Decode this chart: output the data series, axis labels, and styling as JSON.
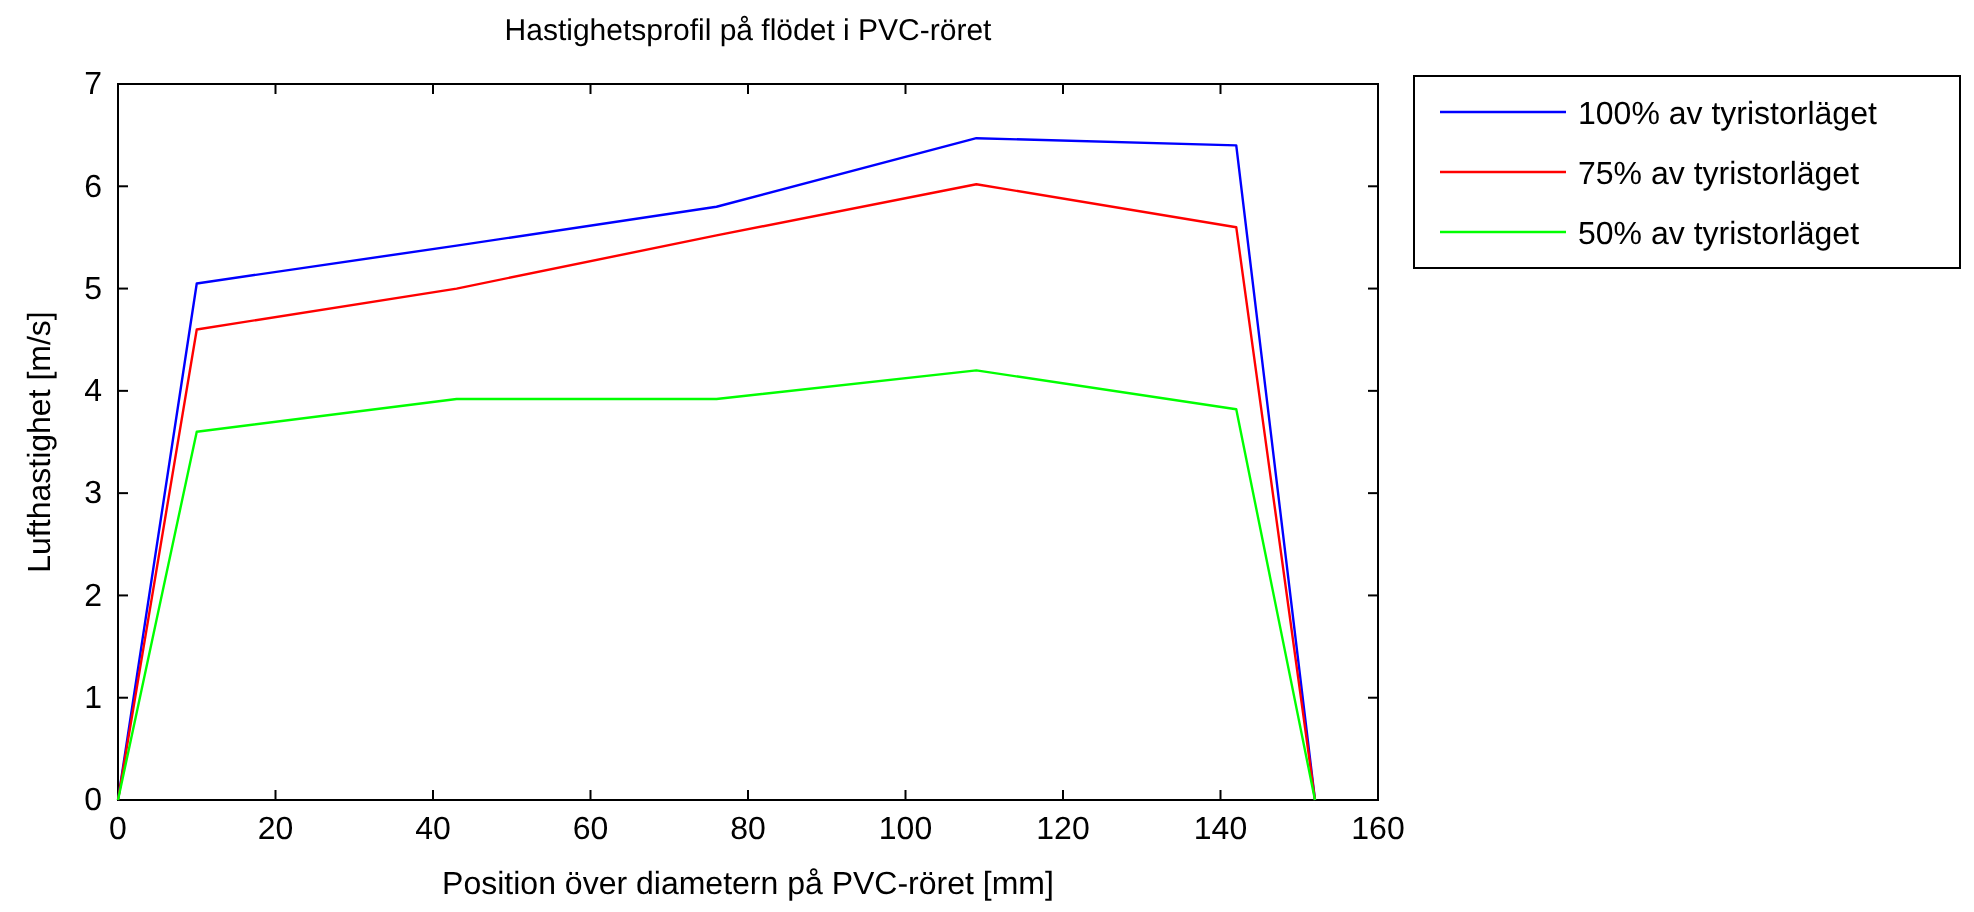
{
  "chart_data": {
    "type": "line",
    "title": "Hastighetsprofil på flödet i PVC-röret",
    "xlabel": "Position över diametern på PVC-röret [mm]",
    "ylabel": "Lufthastighet [m/s]",
    "x": [
      0,
      10,
      43,
      76,
      109,
      142,
      152
    ],
    "series": [
      {
        "name": "100% av tyristorläget",
        "color": "#0000ff",
        "values": [
          0,
          5.05,
          5.42,
          5.8,
          6.47,
          6.4,
          0
        ]
      },
      {
        "name": "75% av tyristorläget",
        "color": "#ff0000",
        "values": [
          0,
          4.6,
          5.0,
          5.52,
          6.02,
          5.6,
          0
        ]
      },
      {
        "name": "50% av tyristorläget",
        "color": "#00ff00",
        "values": [
          0,
          3.6,
          3.92,
          3.92,
          4.2,
          3.82,
          0
        ]
      }
    ],
    "xlim": [
      0,
      160
    ],
    "xticks": [
      0,
      20,
      40,
      60,
      80,
      100,
      120,
      140,
      160
    ],
    "ylim": [
      0,
      7
    ],
    "yticks": [
      0,
      1,
      2,
      3,
      4,
      5,
      6,
      7
    ],
    "grid": false,
    "legend": "top right",
    "marker": "none",
    "line_style": "solid"
  }
}
